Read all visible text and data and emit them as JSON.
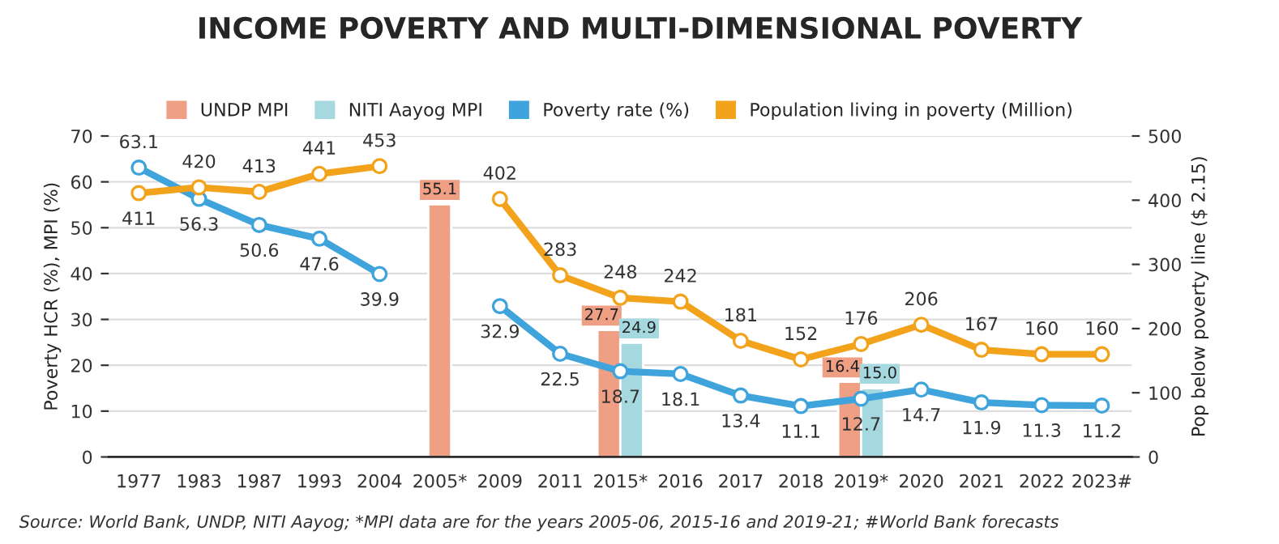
{
  "chart_data": {
    "type": "line",
    "title": "INCOME POVERTY AND MULTI-DIMENSIONAL POVERTY",
    "ylabel": "Poverty HCR (%), MPI (%)",
    "y2label": "Pop below poverty line ($ 2.15)",
    "categories": [
      "1977",
      "1983",
      "1987",
      "1993",
      "2004",
      "2005*",
      "2009",
      "2011",
      "2015*",
      "2016",
      "2017",
      "2018",
      "2019*",
      "2020",
      "2021",
      "2022",
      "2023#"
    ],
    "series": [
      {
        "name": "UNDP MPI",
        "type": "bar",
        "color": "#ee9f84",
        "values": [
          null,
          null,
          null,
          null,
          null,
          55.1,
          null,
          null,
          27.7,
          null,
          null,
          null,
          16.4,
          null,
          null,
          null,
          null
        ],
        "value_labels": [
          null,
          null,
          null,
          null,
          null,
          "55.1",
          null,
          null,
          "27.7",
          null,
          null,
          null,
          "16.4",
          null,
          null,
          null,
          null
        ]
      },
      {
        "name": "NITI Aayog MPI",
        "type": "bar",
        "color": "#a6d8e0",
        "values": [
          null,
          null,
          null,
          null,
          null,
          null,
          null,
          null,
          24.9,
          null,
          null,
          null,
          15.0,
          null,
          null,
          null,
          null
        ],
        "value_labels": [
          null,
          null,
          null,
          null,
          null,
          null,
          null,
          null,
          "24.9",
          null,
          null,
          null,
          "15.0",
          null,
          null,
          null,
          null
        ]
      },
      {
        "name": "Poverty rate (%)",
        "color": "#3fa3dc",
        "values": [
          63.1,
          56.3,
          50.6,
          47.6,
          39.9,
          null,
          32.9,
          22.5,
          18.7,
          18.1,
          13.4,
          11.1,
          12.7,
          14.7,
          11.9,
          11.3,
          11.2
        ],
        "value_labels": [
          "63.1",
          "56.3",
          "50.6",
          "47.6",
          "39.9",
          null,
          "32.9",
          "22.5",
          "18.7",
          "18.1",
          "13.4",
          "11.1",
          "12.7",
          "14.7",
          "11.9",
          "11.3",
          "11.2"
        ]
      },
      {
        "name": "Population living in poverty (Million)",
        "axis": "y2",
        "color": "#f2a31b",
        "values": [
          411,
          420,
          413,
          441,
          453,
          null,
          402,
          283,
          248,
          242,
          181,
          152,
          176,
          206,
          167,
          160,
          160
        ],
        "value_labels": [
          "411",
          "420",
          "413",
          "441",
          "453",
          null,
          "402",
          "283",
          "248",
          "242",
          "181",
          "152",
          "176",
          "206",
          "167",
          "160",
          "160"
        ]
      }
    ],
    "ylim": [
      0,
      70
    ],
    "yticks": [
      0,
      10,
      20,
      30,
      40,
      50,
      60,
      70
    ],
    "y2lim": [
      0,
      500
    ],
    "y2ticks": [
      0,
      100,
      200,
      300,
      400,
      500
    ],
    "grid": "y",
    "legend": "top",
    "marker": "circle",
    "line_style": "solid",
    "annotations": [
      "Source: World Bank, UNDP, NITI Aayog; *MPI data are for the years 2005-06, 2015-16 and 2019-21; #World Bank forecasts"
    ]
  }
}
